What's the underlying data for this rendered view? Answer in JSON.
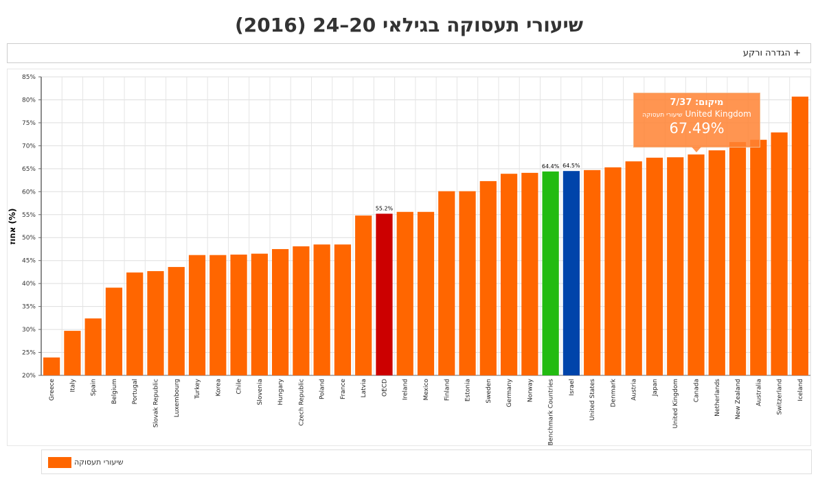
{
  "page_title": "שיעורי תעסוקה בגילאי 20–24 (2016)",
  "definition_toggle": "+ הגדרה ורקע",
  "tooltip": {
    "rank_label": "מיקום:",
    "rank_value": "7/37",
    "series": "שיעורי תעסוקה",
    "country": "United Kingdom",
    "value": "67.49%"
  },
  "colors": {
    "default": "#ff6600",
    "oecd": "#cc0000",
    "benchmark": "#22bb11",
    "israel": "#0044aa"
  },
  "chart_data": {
    "type": "bar",
    "title": "שיעורי תעסוקה בגילאי 20–24 (2016)",
    "ylabel": "אחוז (%)",
    "xlabel": "",
    "ylim": [
      20,
      85
    ],
    "yticks": [
      "20%",
      "25%",
      "30%",
      "35%",
      "40%",
      "45%",
      "50%",
      "55%",
      "60%",
      "65%",
      "70%",
      "75%",
      "80%",
      "85%"
    ],
    "grid": true,
    "legend": {
      "position": "bottom",
      "entries": [
        "שיעורי תעסוקה"
      ]
    },
    "categories": [
      "Greece",
      "Italy",
      "Spain",
      "Belgium",
      "Portugal",
      "Slovak Republic",
      "Luxembourg",
      "Turkey",
      "Korea",
      "Chile",
      "Slovenia",
      "Hungary",
      "Czech Republic",
      "Poland",
      "France",
      "Latvia",
      "OECD",
      "Ireland",
      "Mexico",
      "Finland",
      "Estonia",
      "Sweden",
      "Germany",
      "Norway",
      "Benchmark Countries",
      "Israel",
      "United States",
      "Denmark",
      "Austria",
      "Japan",
      "United Kingdom",
      "Canada",
      "Netherlands",
      "New Zealand",
      "Australia",
      "Switzerland",
      "Iceland"
    ],
    "values": [
      23.9,
      29.7,
      32.4,
      39.1,
      42.4,
      42.7,
      43.6,
      46.2,
      46.2,
      46.3,
      46.5,
      47.5,
      48.1,
      48.5,
      48.5,
      54.8,
      55.2,
      55.6,
      55.6,
      60.1,
      60.1,
      62.3,
      63.9,
      64.1,
      64.4,
      64.5,
      64.7,
      65.3,
      66.6,
      67.4,
      67.49,
      68.1,
      69.0,
      70.8,
      71.3,
      72.9,
      80.7
    ],
    "data_labels": {
      "OECD": "55.2%",
      "Benchmark Countries": "64.4%",
      "Israel": "64.5%"
    },
    "highlight": {
      "OECD": "oecd",
      "Benchmark Countries": "benchmark",
      "Israel": "israel"
    }
  }
}
